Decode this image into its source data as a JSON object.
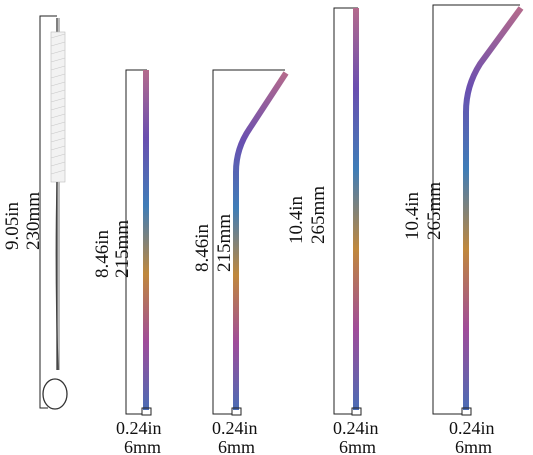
{
  "items": [
    {
      "name": "cleaning-brush",
      "length_in": "9.05in",
      "length_mm": "230mm"
    },
    {
      "name": "straight-straw-short",
      "length_in": "8.46in",
      "length_mm": "215mm",
      "width_in": "0.24in",
      "width_mm": "6mm"
    },
    {
      "name": "bent-straw-short",
      "length_in": "8.46in",
      "length_mm": "215mm",
      "width_in": "0.24in",
      "width_mm": "6mm"
    },
    {
      "name": "straight-straw-long",
      "length_in": "10.4in",
      "length_mm": "265mm",
      "width_in": "0.24in",
      "width_mm": "6mm"
    },
    {
      "name": "bent-straw-long",
      "length_in": "10.4in",
      "length_mm": "265mm",
      "width_in": "0.24in",
      "width_mm": "6mm"
    }
  ],
  "colors": {
    "background": "#ffffff",
    "lines": "#222222",
    "text": "#111111",
    "rainbow": [
      "#c08a3a",
      "#b04a8a",
      "#6a4fb0",
      "#3e7fb8",
      "#c25a6a"
    ]
  }
}
